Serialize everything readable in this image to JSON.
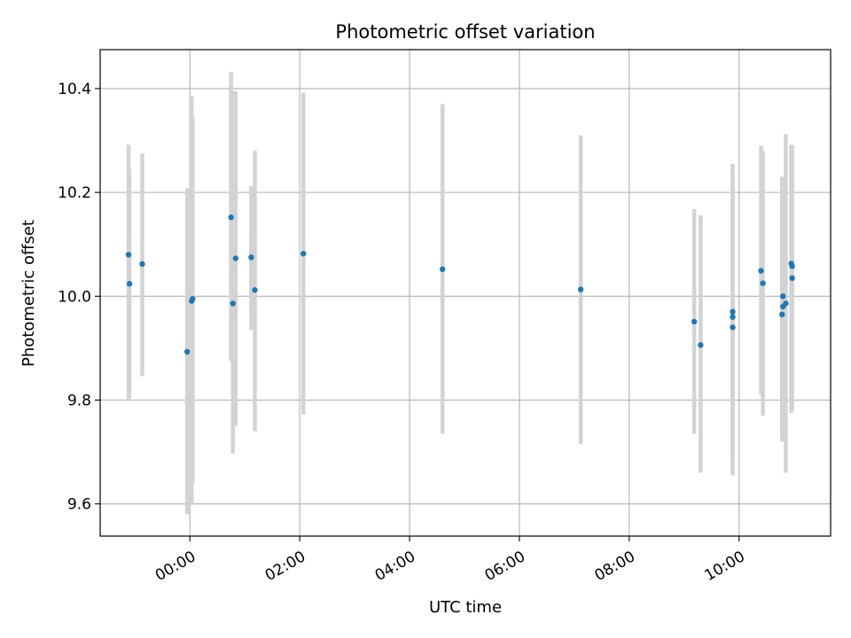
{
  "chart_data": {
    "type": "scatter",
    "title": "Photometric offset variation",
    "xlabel": "UTC time",
    "ylabel": "Photometric offset",
    "x_ticks": [
      "00:00",
      "02:00",
      "04:00",
      "06:00",
      "08:00",
      "10:00"
    ],
    "y_ticks": [
      "9.6",
      "9.8",
      "10.0",
      "10.2",
      "10.4"
    ],
    "xlim": [
      "-01:38",
      "11:40"
    ],
    "ylim": [
      9.538,
      10.475
    ],
    "grid": true,
    "colors": {
      "point": "#1f77b4",
      "errorbar": "#d3d3d3",
      "grid": "#b0b0b0"
    },
    "points": [
      {
        "t": "-01:07",
        "y": 10.08,
        "ylow": 9.8,
        "yhigh": 10.292
      },
      {
        "t": "-01:06",
        "y": 10.024,
        "ylow": 9.803,
        "yhigh": 10.245
      },
      {
        "t": "-00:52",
        "y": 10.062,
        "ylow": 9.846,
        "yhigh": 10.275
      },
      {
        "t": "-00:03",
        "y": 9.893,
        "ylow": 9.58,
        "yhigh": 10.208
      },
      {
        "t": "00:02",
        "y": 9.991,
        "ylow": 9.598,
        "yhigh": 10.385
      },
      {
        "t": "00:03",
        "y": 9.995,
        "ylow": 9.64,
        "yhigh": 10.345
      },
      {
        "t": "00:45",
        "y": 10.152,
        "ylow": 9.875,
        "yhigh": 10.432
      },
      {
        "t": "00:47",
        "y": 9.986,
        "ylow": 9.697,
        "yhigh": 10.395
      },
      {
        "t": "00:50",
        "y": 10.073,
        "ylow": 9.75,
        "yhigh": 10.395
      },
      {
        "t": "01:07",
        "y": 10.075,
        "ylow": 9.935,
        "yhigh": 10.212
      },
      {
        "t": "01:11",
        "y": 10.012,
        "ylow": 9.74,
        "yhigh": 10.28
      },
      {
        "t": "02:04",
        "y": 10.082,
        "ylow": 9.772,
        "yhigh": 10.392
      },
      {
        "t": "04:36",
        "y": 10.052,
        "ylow": 9.735,
        "yhigh": 10.37
      },
      {
        "t": "07:07",
        "y": 10.013,
        "ylow": 9.715,
        "yhigh": 10.31
      },
      {
        "t": "09:11",
        "y": 9.951,
        "ylow": 9.735,
        "yhigh": 10.168
      },
      {
        "t": "09:18",
        "y": 9.906,
        "ylow": 9.66,
        "yhigh": 10.156
      },
      {
        "t": "09:53",
        "y": 9.97,
        "ylow": 9.655,
        "yhigh": 10.255
      },
      {
        "t": "09:53",
        "y": 9.96,
        "ylow": 9.69,
        "yhigh": 10.235
      },
      {
        "t": "09:53",
        "y": 9.94,
        "ylow": 9.7,
        "yhigh": 10.18
      },
      {
        "t": "10:24",
        "y": 10.049,
        "ylow": 9.81,
        "yhigh": 10.29
      },
      {
        "t": "10:26",
        "y": 10.025,
        "ylow": 9.77,
        "yhigh": 10.28
      },
      {
        "t": "10:47",
        "y": 9.965,
        "ylow": 9.72,
        "yhigh": 10.23
      },
      {
        "t": "10:48",
        "y": 10.0,
        "ylow": 9.735,
        "yhigh": 10.2
      },
      {
        "t": "10:48",
        "y": 9.98,
        "ylow": 9.74,
        "yhigh": 10.22
      },
      {
        "t": "10:51",
        "y": 9.986,
        "ylow": 9.66,
        "yhigh": 10.312
      },
      {
        "t": "10:57",
        "y": 10.063,
        "ylow": 9.775,
        "yhigh": 10.292
      },
      {
        "t": "10:58",
        "y": 10.058,
        "ylow": 9.85,
        "yhigh": 10.27
      },
      {
        "t": "10:58",
        "y": 10.035,
        "ylow": 9.78,
        "yhigh": 10.29
      }
    ]
  }
}
